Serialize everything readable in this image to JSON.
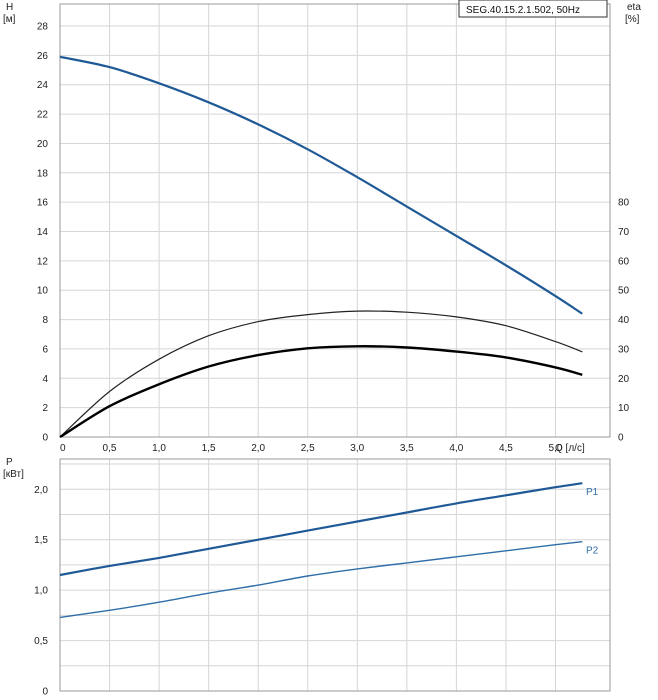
{
  "chart_data": [
    {
      "type": "line",
      "title": "SEG.40.15.2.1.502, 50Hz",
      "xlabel": "Q [л/с]",
      "ylabel": "H\n[м]",
      "ylabel2": "eta\n[%]",
      "xlim": [
        0,
        5.55
      ],
      "ylim": [
        0,
        29.5
      ],
      "ylim2": [
        0,
        147.5
      ],
      "xticks": [
        "0",
        "0,5",
        "1,0",
        "1,5",
        "2,0",
        "2,5",
        "3,0",
        "3,5",
        "4,0",
        "4,5",
        "5,0"
      ],
      "yticks": [
        "0",
        "2",
        "4",
        "6",
        "8",
        "10",
        "12",
        "14",
        "16",
        "18",
        "20",
        "22",
        "24",
        "26",
        "28"
      ],
      "yticks2": [
        "0",
        "10",
        "20",
        "30",
        "40",
        "50",
        "60",
        "70",
        "80"
      ],
      "grid": true,
      "series": [
        {
          "axis": "left",
          "color": "#1f5a96",
          "x": [
            0,
            0.5,
            1.0,
            1.5,
            2.0,
            2.5,
            3.0,
            3.5,
            4.0,
            4.5,
            5.0,
            5.27
          ],
          "values": [
            25.9,
            25.2,
            24.1,
            22.8,
            21.3,
            19.6,
            17.7,
            15.7,
            13.7,
            11.7,
            9.6,
            8.4
          ]
        },
        {
          "axis": "right",
          "color": "#222222",
          "x": [
            0,
            0.5,
            1.0,
            1.5,
            2.0,
            2.5,
            3.0,
            3.5,
            4.0,
            4.5,
            5.0,
            5.27
          ],
          "values": [
            0,
            15.5,
            26.5,
            34.5,
            39.3,
            41.7,
            42.9,
            42.5,
            40.9,
            37.9,
            32.5,
            29.0
          ]
        },
        {
          "axis": "right",
          "color": "#000000",
          "x": [
            0,
            0.5,
            1.0,
            1.5,
            2.0,
            2.5,
            3.0,
            3.5,
            4.0,
            4.5,
            5.0,
            5.27
          ],
          "values": [
            0,
            10.5,
            18.0,
            24.0,
            27.9,
            30.2,
            30.9,
            30.5,
            29.1,
            27.1,
            23.7,
            21.2
          ]
        }
      ]
    },
    {
      "type": "line",
      "xlabel": "",
      "ylabel": "P\n[кВт]",
      "xlim": [
        0,
        5.55
      ],
      "ylim": [
        0,
        2.3
      ],
      "yticks": [
        "0",
        "0,5",
        "1,0",
        "1,5",
        "2,0"
      ],
      "grid": true,
      "series": [
        {
          "name": "P1",
          "color": "#1f5a96",
          "x": [
            0,
            0.5,
            1.0,
            1.5,
            2.0,
            2.5,
            3.0,
            3.5,
            4.0,
            4.5,
            5.0,
            5.27
          ],
          "values": [
            1.15,
            1.24,
            1.32,
            1.41,
            1.5,
            1.59,
            1.68,
            1.77,
            1.86,
            1.94,
            2.02,
            2.06
          ]
        },
        {
          "name": "P2",
          "color": "#2f6ea8",
          "x": [
            0,
            0.5,
            1.0,
            1.5,
            2.0,
            2.5,
            3.0,
            3.5,
            4.0,
            4.5,
            5.0,
            5.27
          ],
          "values": [
            0.73,
            0.8,
            0.88,
            0.97,
            1.05,
            1.14,
            1.21,
            1.27,
            1.33,
            1.39,
            1.45,
            1.48
          ]
        }
      ]
    }
  ]
}
